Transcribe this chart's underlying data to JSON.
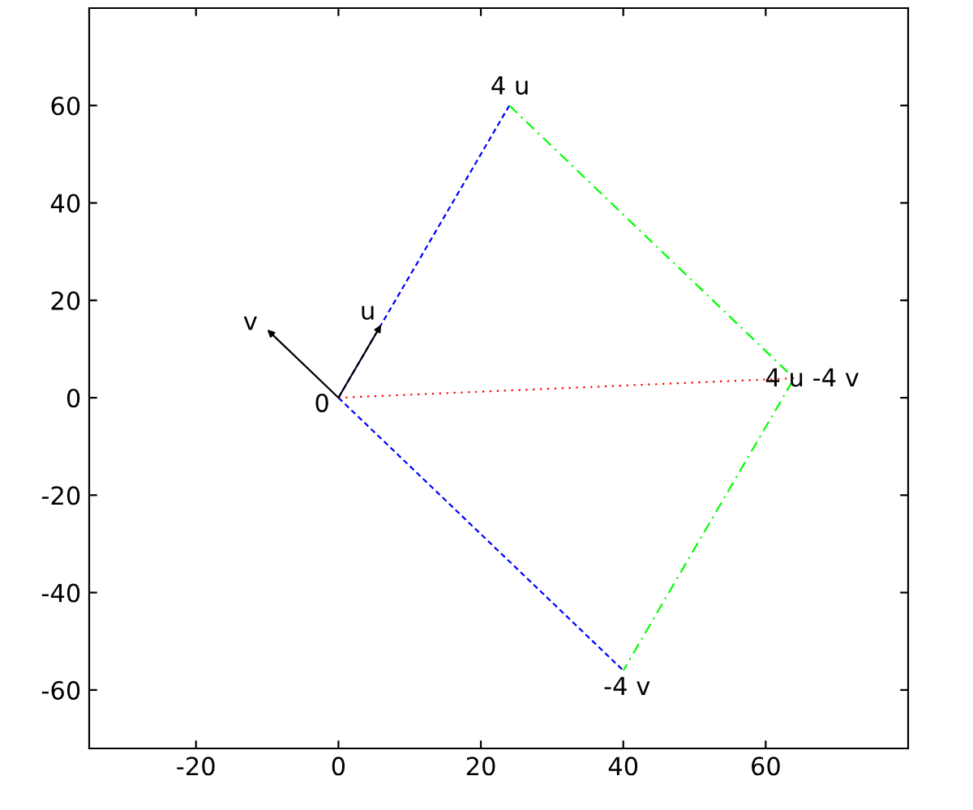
{
  "chart_data": {
    "type": "line",
    "xlim": [
      -35,
      80
    ],
    "ylim": [
      -72,
      80
    ],
    "xticks": [
      -20,
      0,
      20,
      40,
      60
    ],
    "yticks": [
      -60,
      -40,
      -20,
      0,
      20,
      40,
      60
    ],
    "grid": false,
    "legend": false,
    "marker": "none",
    "series": [
      {
        "color": "#0000ff",
        "line_style": "dashed",
        "x": [
          0,
          24
        ],
        "values": [
          0,
          60
        ]
      },
      {
        "color": "#0000ff",
        "line_style": "dashed",
        "x": [
          0,
          40
        ],
        "values": [
          0,
          -56
        ]
      },
      {
        "color": "#00ff00",
        "line_style": "dashdot",
        "x": [
          24,
          64,
          40
        ],
        "values": [
          60,
          4,
          -56
        ]
      },
      {
        "color": "#ff0000",
        "line_style": "dotted",
        "x": [
          0,
          64
        ],
        "values": [
          0,
          4
        ]
      },
      {
        "color": "#000000",
        "line_style": "solid",
        "x": [
          0,
          6
        ],
        "values": [
          0,
          15
        ]
      },
      {
        "color": "#000000",
        "line_style": "solid",
        "x": [
          0,
          -10
        ],
        "values": [
          0,
          14
        ]
      }
    ],
    "annotations": [
      {
        "text": "0",
        "x": 0,
        "y": 0
      },
      {
        "text": "u",
        "x": 6,
        "y": 15
      },
      {
        "text": "v",
        "x": -10,
        "y": 14
      },
      {
        "text": "4 u",
        "x": 24,
        "y": 60
      },
      {
        "text": "4 u -4 v",
        "x": 64,
        "y": 4
      },
      {
        "text": "-4 v",
        "x": 40,
        "y": -56
      }
    ]
  }
}
